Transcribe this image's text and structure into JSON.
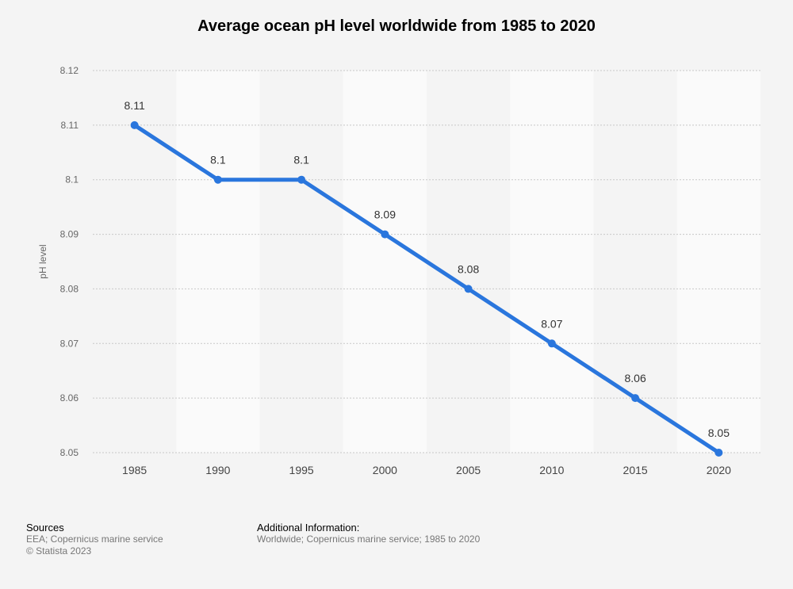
{
  "chart_data": {
    "type": "line",
    "title": "Average ocean pH level worldwide from 1985 to 2020",
    "xlabel": "",
    "ylabel": "pH level",
    "categories": [
      "1985",
      "1990",
      "1995",
      "2000",
      "2005",
      "2010",
      "2015",
      "2020"
    ],
    "values": [
      8.11,
      8.1,
      8.1,
      8.09,
      8.08,
      8.07,
      8.06,
      8.05
    ],
    "data_labels": [
      "8.11",
      "8.1",
      "8.1",
      "8.09",
      "8.08",
      "8.07",
      "8.06",
      "8.05"
    ],
    "ylim": [
      8.05,
      8.12
    ],
    "yticks": [
      8.05,
      8.06,
      8.07,
      8.08,
      8.09,
      8.1,
      8.11,
      8.12
    ],
    "ytick_labels": [
      "8.05",
      "8.06",
      "8.07",
      "8.08",
      "8.09",
      "8.1",
      "8.11",
      "8.12"
    ],
    "grid": true,
    "line_color": "#2a76dd"
  },
  "footer": {
    "sources_heading": "Sources",
    "sources_text": "EEA; Copernicus marine service",
    "copyright": "© Statista 2023",
    "additional_heading": "Additional Information:",
    "additional_text": "Worldwide; Copernicus marine service; 1985 to 2020"
  }
}
